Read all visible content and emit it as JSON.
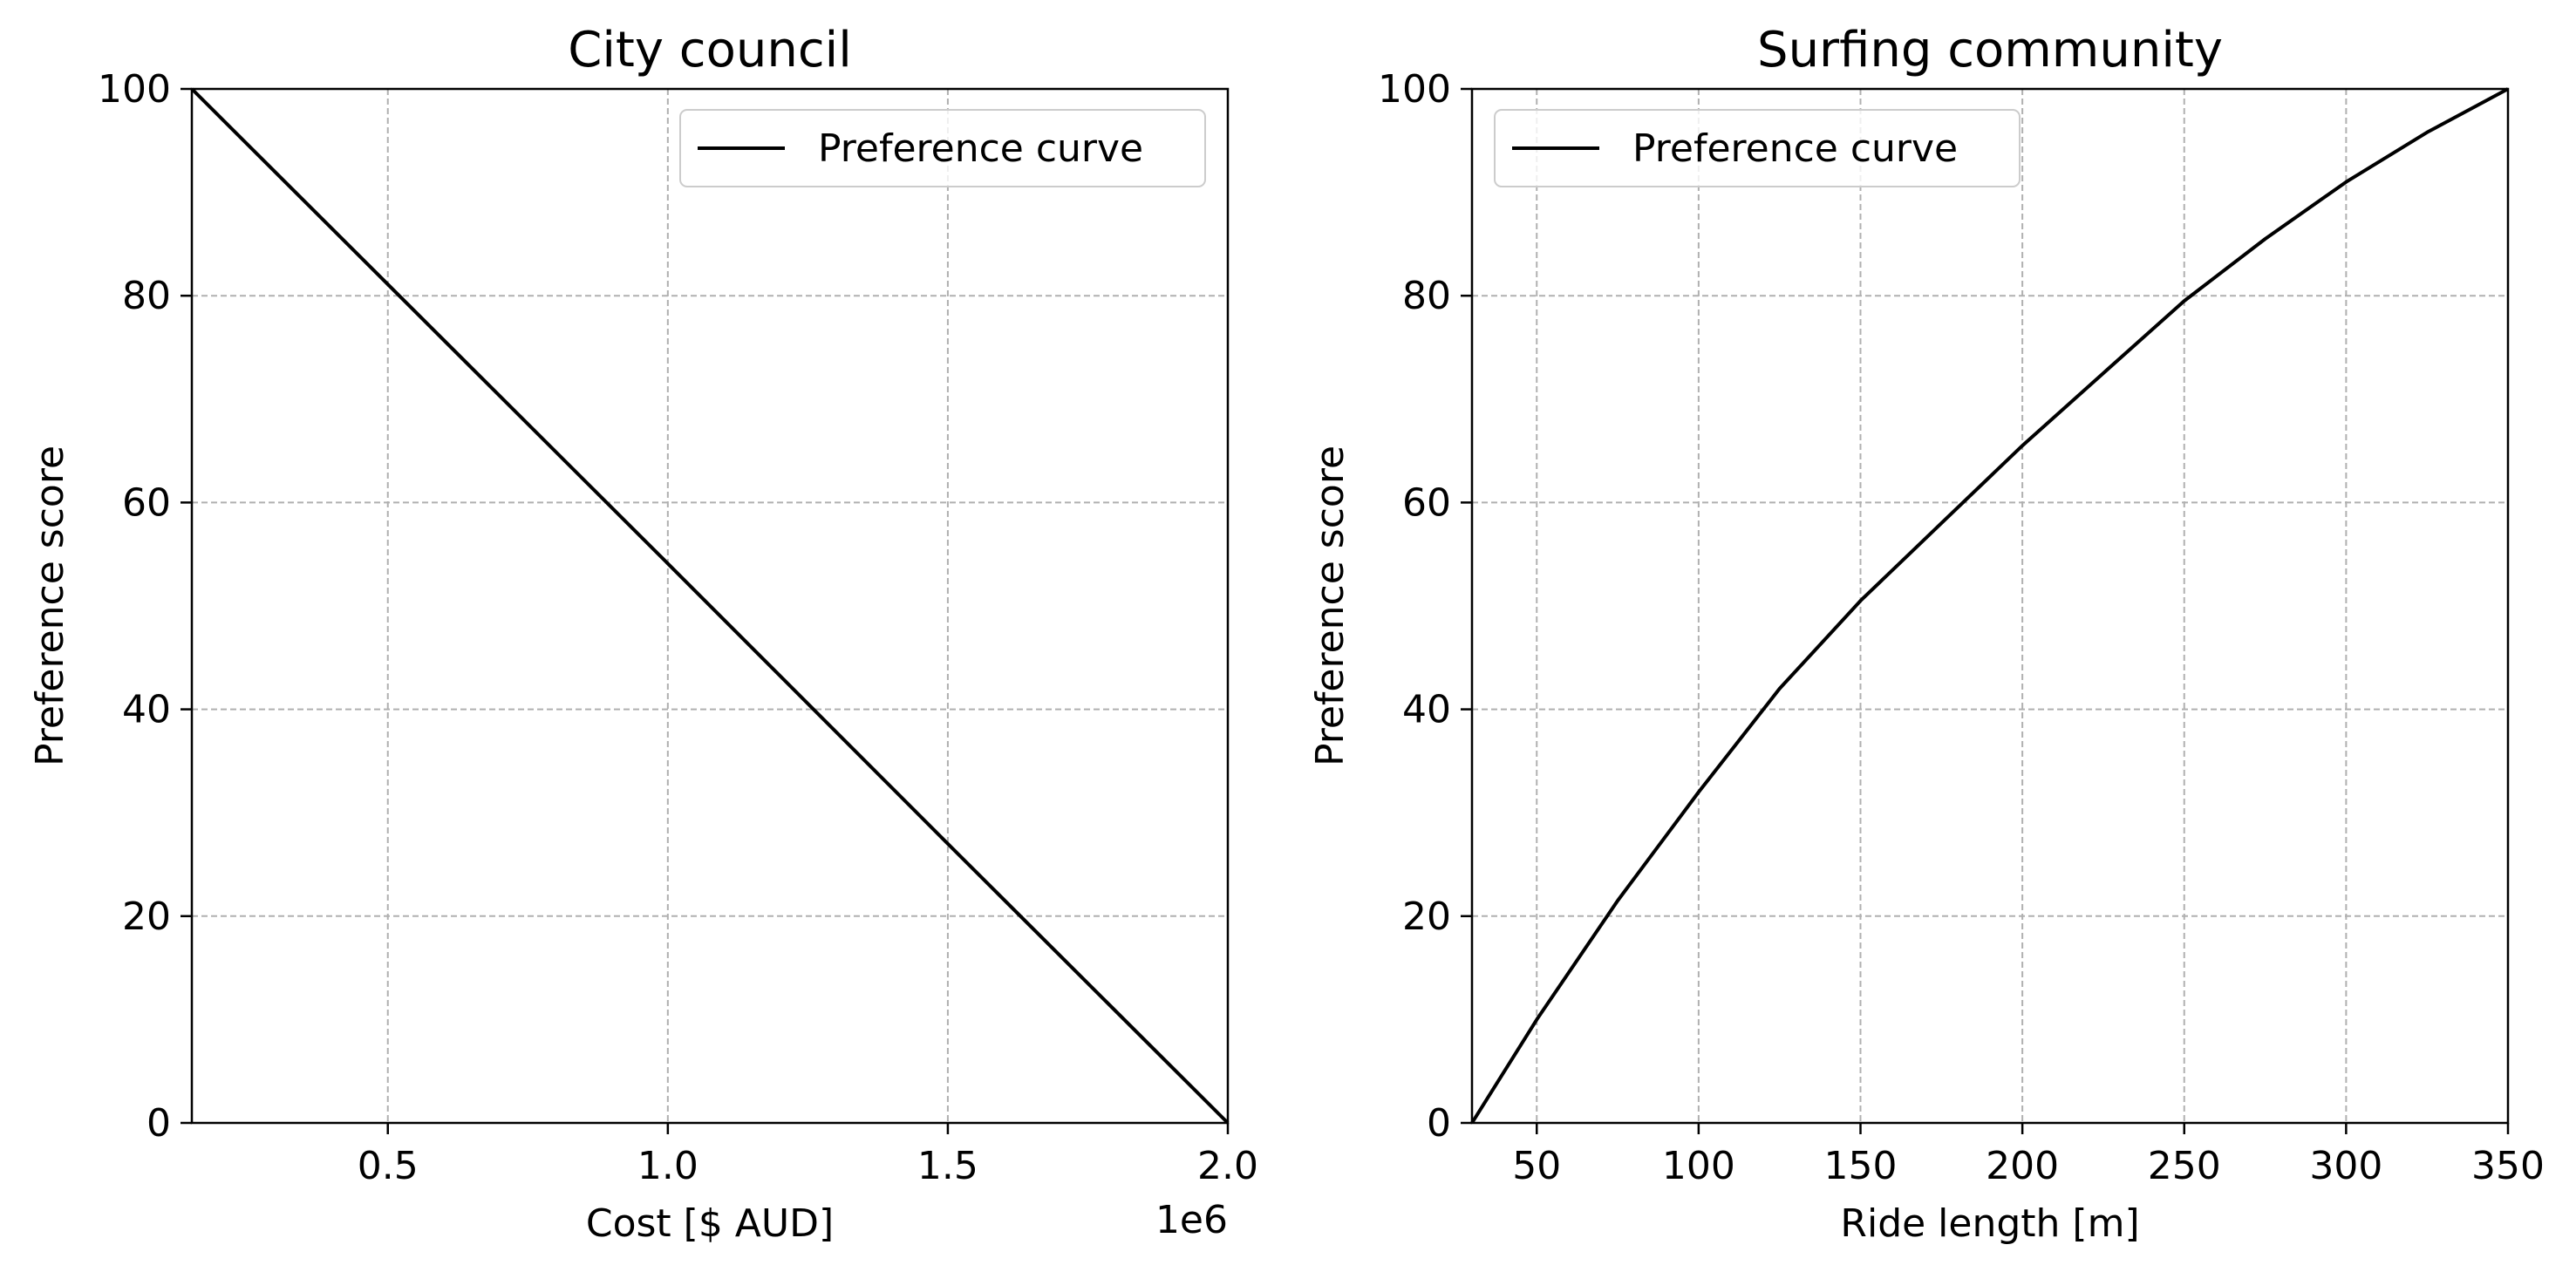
{
  "chart_data": [
    {
      "type": "line",
      "title": "City council",
      "xlabel": "Cost [$ AUD]",
      "ylabel": "Preference score",
      "x_offset_label": "1e6",
      "xlim": [
        150000,
        2000000
      ],
      "ylim": [
        0,
        100
      ],
      "xticks": [
        500000,
        1000000,
        1500000,
        2000000
      ],
      "xtick_labels": [
        "0.5",
        "1.0",
        "1.5",
        "2.0"
      ],
      "yticks": [
        0,
        20,
        40,
        60,
        80,
        100
      ],
      "ytick_labels": [
        "0",
        "20",
        "40",
        "60",
        "80",
        "100"
      ],
      "grid": true,
      "legend_position": "upper right",
      "series": [
        {
          "name": "Preference curve",
          "color": "#000000",
          "x": [
            150000,
            500000,
            1000000,
            1500000,
            2000000
          ],
          "y": [
            100,
            81.1,
            54.1,
            27.0,
            0
          ]
        }
      ]
    },
    {
      "type": "line",
      "title": "Surfing community",
      "xlabel": "Ride length [m]",
      "ylabel": "Preference score",
      "xlim": [
        30,
        350
      ],
      "ylim": [
        0,
        100
      ],
      "xticks": [
        50,
        100,
        150,
        200,
        250,
        300,
        350
      ],
      "xtick_labels": [
        "50",
        "100",
        "150",
        "200",
        "250",
        "300",
        "350"
      ],
      "yticks": [
        0,
        20,
        40,
        60,
        80,
        100
      ],
      "ytick_labels": [
        "0",
        "20",
        "40",
        "60",
        "80",
        "100"
      ],
      "grid": true,
      "legend_position": "upper left",
      "series": [
        {
          "name": "Preference curve",
          "color": "#000000",
          "x": [
            30,
            50,
            75,
            100,
            125,
            150,
            175,
            200,
            225,
            250,
            275,
            300,
            325,
            350
          ],
          "y": [
            0,
            10,
            21.5,
            32,
            42,
            50.5,
            58,
            65.5,
            72.5,
            79.5,
            85.5,
            91,
            95.8,
            100
          ]
        }
      ]
    }
  ]
}
